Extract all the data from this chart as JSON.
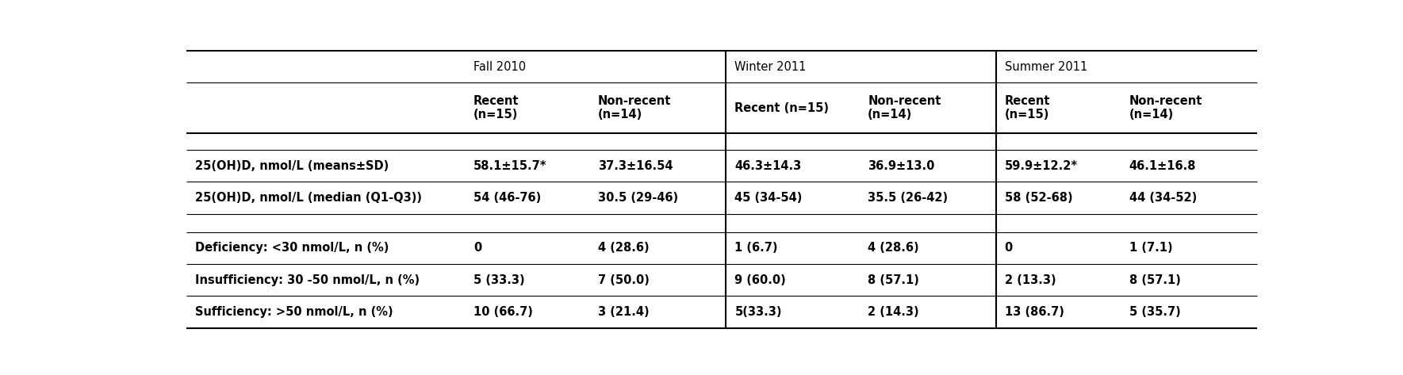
{
  "figsize": [
    17.69,
    4.73
  ],
  "dpi": 100,
  "background_color": "#ffffff",
  "text_color": "#000000",
  "season_headers": [
    "Fall 2010",
    "Winter 2011",
    "Summer 2011"
  ],
  "col_subheaders": [
    "",
    "Recent\n(n=15)",
    "Non-recent\n(n=14)",
    "Recent (n=15)",
    "Non-recent\n(n=14)",
    "Recent\n(n=15)",
    "Non-recent\n(n=14)"
  ],
  "rows": [
    [
      "25(OH)D, nmol/L (means±SD)",
      "58.1±15.7*",
      "37.3±16.54",
      "46.3±14.3",
      "36.9±13.0",
      "59.9±12.2*",
      "46.1±16.8"
    ],
    [
      "25(OH)D, nmol/L (median (Q1-Q3))",
      "54 (46-76)",
      "30.5 (29-46)",
      "45 (34-54)",
      "35.5 (26-42)",
      "58 (52-68)",
      "44 (34-52)"
    ],
    [
      "",
      "",
      "",
      "",
      "",
      "",
      ""
    ],
    [
      "Deficiency: <30 nmol/L, n (%)",
      "0",
      "4 (28.6)",
      "1 (6.7)",
      "4 (28.6)",
      "0",
      "1 (7.1)"
    ],
    [
      "Insufficiency: 30 -50 nmol/L, n (%)",
      "5 (33.3)",
      "7 (50.0)",
      "9 (60.0)",
      "8 (57.1)",
      "2 (13.3)",
      "8 (57.1)"
    ],
    [
      "Sufficiency: >50 nmol/L, n (%)",
      "10 (66.7)",
      "3 (21.4)",
      "5(33.3)",
      "2 (14.3)",
      "13 (86.7)",
      "5 (35.7)"
    ]
  ],
  "bold_data_rows": [
    0,
    1,
    3,
    4,
    5
  ],
  "font_size": 10.5,
  "header_font_size": 10.5
}
